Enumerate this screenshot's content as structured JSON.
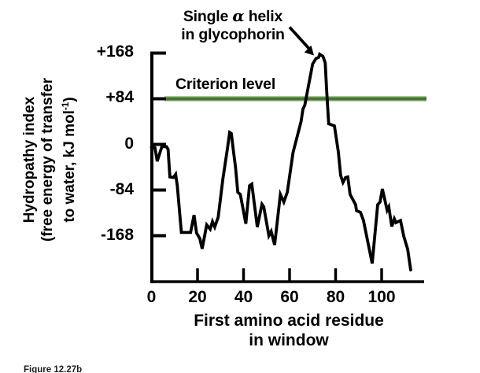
{
  "figure": {
    "annotation": {
      "line1_pre": "Single ",
      "alpha": "α",
      "line1_post": " helix",
      "line2": "in glycophorin"
    },
    "criterion_label": "Criterion level",
    "y_axis_title": {
      "line1": "Hydropathy index",
      "line2": "(free energy of transfer",
      "line3_pre": "to water, kJ mol",
      "line3_sup": "-1",
      "line3_post": ")"
    },
    "x_axis_title": {
      "line1": "First amino acid residue",
      "line2": "in window"
    },
    "caption": "Figure 12.27b"
  },
  "chart_data": {
    "type": "line",
    "xlabel": "First amino acid residue in window",
    "ylabel": "Hydropathy index (free energy of transfer to water, kJ mol⁻¹)",
    "xlim": [
      0,
      119
    ],
    "ylim": [
      -245,
      175
    ],
    "grid": false,
    "x_ticks": [
      {
        "label": "0",
        "value": 0
      },
      {
        "label": "20",
        "value": 20
      },
      {
        "label": "40",
        "value": 40
      },
      {
        "label": "60",
        "value": 60
      },
      {
        "label": "80",
        "value": 80
      },
      {
        "label": "100",
        "value": 100
      }
    ],
    "y_ticks": [
      {
        "label": "+168",
        "value": 168
      },
      {
        "label": "+84",
        "value": 84
      },
      {
        "label": "0",
        "value": 0
      },
      {
        "label": "-84",
        "value": -84
      },
      {
        "label": "-168",
        "value": -168
      }
    ],
    "criterion_line": {
      "label": "Criterion level",
      "value": 84,
      "color": "#457433",
      "edge_color": "#adc89c"
    },
    "annotation": {
      "text": "Single α helix in glycophorin",
      "points_to": {
        "x": 73,
        "y": 166
      }
    },
    "series": [
      {
        "name": "Glycophorin hydropathy index",
        "color": "#000000",
        "points": [
          [
            0,
            -5
          ],
          [
            1.5,
            -6
          ],
          [
            2.5,
            -31
          ],
          [
            4.5,
            -4
          ],
          [
            6.5,
            -4
          ],
          [
            7.2,
            -9
          ],
          [
            8,
            -60
          ],
          [
            9.5,
            -61
          ],
          [
            10.5,
            -55
          ],
          [
            11.2,
            -76
          ],
          [
            13,
            -162
          ],
          [
            17,
            -162
          ],
          [
            18.5,
            -130
          ],
          [
            19.6,
            -163
          ],
          [
            21,
            -173
          ],
          [
            22,
            -192
          ],
          [
            24,
            -148
          ],
          [
            25.5,
            -156
          ],
          [
            26.5,
            -142
          ],
          [
            27.5,
            -152
          ],
          [
            29,
            -134
          ],
          [
            31,
            -64
          ],
          [
            33,
            -8
          ],
          [
            34,
            22
          ],
          [
            34.7,
            20
          ],
          [
            35.5,
            -8
          ],
          [
            36.5,
            -42
          ],
          [
            37.5,
            -88
          ],
          [
            38.6,
            -92
          ],
          [
            41,
            -146
          ],
          [
            42.6,
            -76
          ],
          [
            43.6,
            -73
          ],
          [
            46,
            -152
          ],
          [
            48,
            -110
          ],
          [
            48.8,
            -115
          ],
          [
            51,
            -168
          ],
          [
            52,
            -160
          ],
          [
            53.5,
            -185
          ],
          [
            56,
            -92
          ],
          [
            57.5,
            -106
          ],
          [
            59,
            -88
          ],
          [
            61.5,
            -15
          ],
          [
            65,
            42
          ],
          [
            65.8,
            65
          ],
          [
            66.6,
            72
          ],
          [
            70,
            148
          ],
          [
            71.5,
            158
          ],
          [
            72.6,
            160
          ],
          [
            73.1,
            166
          ],
          [
            74.5,
            162
          ],
          [
            75.5,
            150
          ],
          [
            76.1,
            100
          ],
          [
            77,
            38
          ],
          [
            79.5,
            34
          ],
          [
            81.2,
            -14
          ],
          [
            82.2,
            -57
          ],
          [
            83.2,
            -70
          ],
          [
            84.3,
            -61
          ],
          [
            85.3,
            -60
          ],
          [
            86.3,
            -92
          ],
          [
            88.7,
            -111
          ],
          [
            89.1,
            -122
          ],
          [
            90.8,
            -125
          ],
          [
            92.1,
            -140
          ],
          [
            95.9,
            -219
          ],
          [
            98.3,
            -111
          ],
          [
            99.3,
            -106
          ],
          [
            100.3,
            -82
          ],
          [
            102.4,
            -121
          ],
          [
            103.1,
            -115
          ],
          [
            104.4,
            -151
          ],
          [
            105.5,
            -137
          ],
          [
            106.2,
            -144
          ],
          [
            108.2,
            -140
          ],
          [
            109.6,
            -169
          ],
          [
            111.3,
            -193
          ],
          [
            112.6,
            -231
          ]
        ]
      }
    ]
  }
}
